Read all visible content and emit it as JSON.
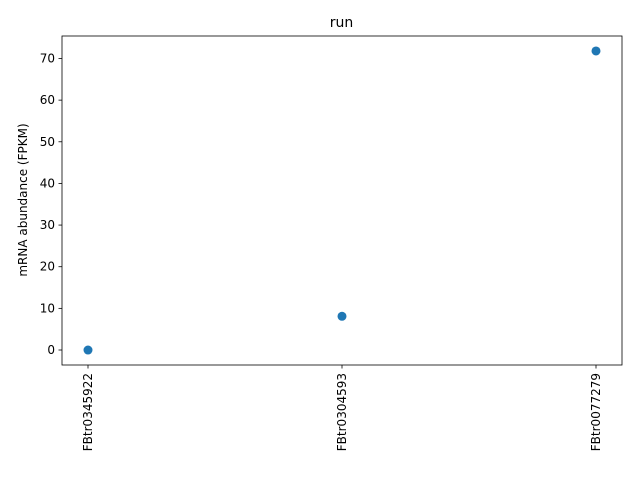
{
  "chart_data": {
    "type": "scatter",
    "title": "run",
    "xlabel": "",
    "ylabel": "mRNA abundance (FPKM)",
    "categories": [
      "FBtr0345922",
      "FBtr0304593",
      "FBtr0077279"
    ],
    "values": [
      0,
      8.1,
      71.8
    ],
    "ylim": [
      -3.6,
      75.4
    ],
    "yticks": [
      0,
      10,
      20,
      30,
      40,
      50,
      60,
      70
    ],
    "grid": false,
    "point_color": "#1f77b4"
  }
}
